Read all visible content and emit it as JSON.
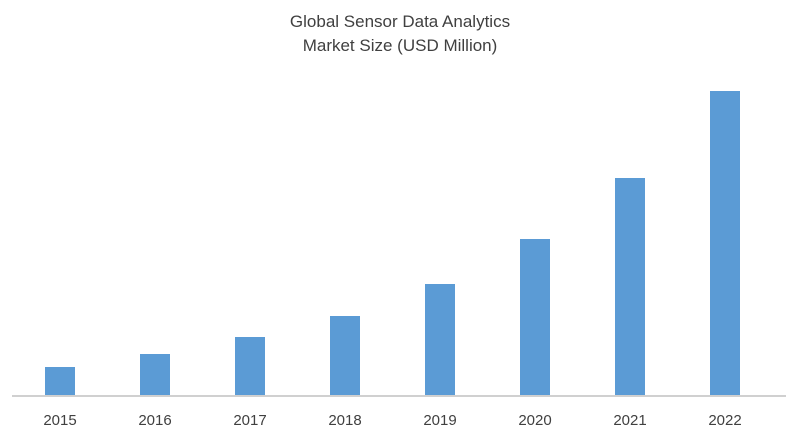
{
  "chart_data": {
    "type": "bar",
    "title_lines": [
      "Global Sensor Data Analytics",
      "Market Size (USD Million)"
    ],
    "categories": [
      "2015",
      "2016",
      "2017",
      "2018",
      "2019",
      "2020",
      "2021",
      "2022"
    ],
    "values": [
      29,
      42,
      59,
      80,
      112,
      157,
      218,
      305
    ],
    "ylim": [
      0,
      305
    ],
    "xlabel": "",
    "ylabel": "",
    "y_axis_shown": false,
    "grid": false,
    "legend": "none",
    "bar_color": "#5b9bd5",
    "axis_color": "#d0d0d0"
  }
}
